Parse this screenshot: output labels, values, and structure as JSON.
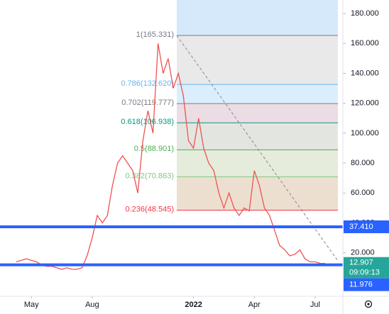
{
  "chart_data": {
    "type": "line",
    "x": [
      -0.75,
      -0.5,
      -0.25,
      0,
      0.25,
      0.5,
      0.75,
      1,
      1.25,
      1.5,
      1.75,
      2,
      2.25,
      2.5,
      2.75,
      3,
      3.25,
      3.5,
      3.75,
      4,
      4.25,
      4.5,
      4.75,
      5,
      5.25,
      5.5,
      5.75,
      6,
      6.25,
      6.5,
      6.75,
      7,
      7.25,
      7.5,
      7.75,
      8,
      8.25,
      8.5,
      8.75,
      9,
      9.25,
      9.5,
      9.75,
      10,
      10.25,
      10.5,
      10.75,
      11,
      11.25,
      11.5,
      11.75,
      12,
      12.25,
      12.5,
      12.75,
      13,
      13.25,
      13.5,
      13.75,
      14,
      14.25,
      14.5
    ],
    "series": [
      {
        "color": "#ef5350",
        "values": [
          14,
          15,
          16,
          15,
          14,
          12,
          11,
          11,
          10,
          9,
          10,
          9,
          9,
          10,
          18,
          30,
          45,
          40,
          45,
          65,
          80,
          85,
          80,
          75,
          60,
          95,
          115,
          100,
          160,
          140,
          150,
          130,
          140,
          125,
          95,
          90,
          110,
          90,
          80,
          75,
          60,
          50,
          60,
          50,
          45,
          50,
          48,
          75,
          65,
          50,
          45,
          35,
          25,
          22,
          18,
          19,
          22,
          16,
          14,
          14,
          13,
          12.907
        ]
      }
    ],
    "xlim": [
      -1.55,
      15.37
    ],
    "xticks": [
      {
        "value": 0,
        "label": "May"
      },
      {
        "value": 3,
        "label": "Aug"
      },
      {
        "value": 8,
        "label": "2022"
      },
      {
        "value": 11,
        "label": "Apr"
      },
      {
        "value": 14,
        "label": "Jul"
      }
    ],
    "ylim": [
      -9.05,
      189.05
    ],
    "yticks": [
      {
        "value": 20,
        "label": "20.000"
      },
      {
        "value": 40,
        "label": "40.000"
      },
      {
        "value": 60,
        "label": "60.000"
      },
      {
        "value": 80,
        "label": "80.000"
      },
      {
        "value": 100,
        "label": "100.000"
      },
      {
        "value": 120,
        "label": "120.000"
      },
      {
        "value": 140,
        "label": "140.000"
      },
      {
        "value": 160,
        "label": "160.000"
      },
      {
        "value": 180,
        "label": "180.000"
      }
    ],
    "fib_levels": [
      {
        "value": 165.331,
        "label": "1(165.331)",
        "color": "#787b86",
        "fill": "#e9e9ea"
      },
      {
        "value": 132.62,
        "label": "0.786(132.620)",
        "color": "#64b5f6",
        "fill": "#dbeefd"
      },
      {
        "value": 119.777,
        "label": "0.702(119.777)",
        "color": "#787b86",
        "fill": "#ecdce3"
      },
      {
        "value": 106.938,
        "label": "0.618(106.938)",
        "color": "#089981",
        "fill": "#e3e6e0"
      },
      {
        "value": 88.901,
        "label": "0.5(88.901)",
        "color": "#4caf50",
        "fill": "#e5ecdb"
      },
      {
        "value": 70.863,
        "label": "0.382(70.863)",
        "color": "#81c784",
        "fill": "#ecdfd0"
      },
      {
        "value": 48.545,
        "label": "0.236(48.545)",
        "color": "#f23645",
        "fill": null
      }
    ],
    "hlines": [
      {
        "value": 37.41,
        "label": "37.410",
        "color": "#2962ff"
      },
      {
        "value": 11.976,
        "label": "11.976",
        "color": "#2962ff"
      }
    ],
    "last_price": {
      "value": 12.907,
      "label": "12.907",
      "countdown": "09:09:13",
      "color": "#26a69a"
    }
  }
}
